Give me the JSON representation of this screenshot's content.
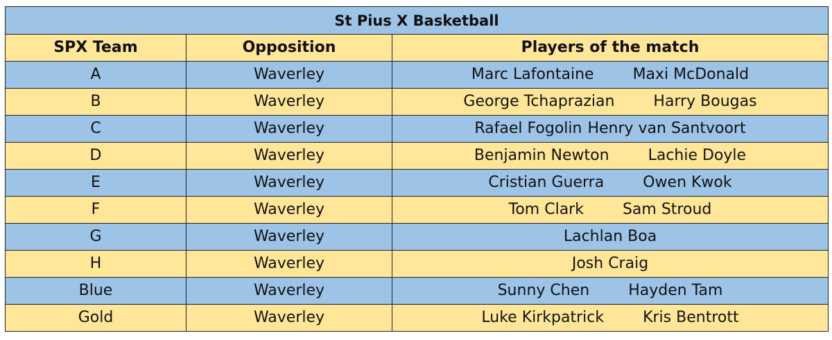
{
  "title": "St Pius X Basketball",
  "headers": [
    "SPX Team",
    "Opposition",
    "Players of the match"
  ],
  "colors": {
    "row_blue": "#9dc3e6",
    "row_yellow": "#ffe699"
  },
  "rows": [
    {
      "team": "A",
      "opposition": "Waverley",
      "players": [
        "Marc Lafontaine",
        "Maxi McDonald"
      ]
    },
    {
      "team": "B",
      "opposition": "Waverley",
      "players": [
        "George Tchaprazian",
        "Harry Bougas"
      ]
    },
    {
      "team": "C",
      "opposition": "Waverley",
      "players": [
        "Rafael Fogolin",
        "Henry van Santvoort"
      ]
    },
    {
      "team": "D",
      "opposition": "Waverley",
      "players": [
        "Benjamin Newton",
        "Lachie Doyle"
      ]
    },
    {
      "team": "E",
      "opposition": "Waverley",
      "players": [
        "Cristian Guerra",
        "Owen Kwok"
      ]
    },
    {
      "team": "F",
      "opposition": "Waverley",
      "players": [
        "Tom Clark",
        "Sam Stroud"
      ]
    },
    {
      "team": "G",
      "opposition": "Waverley",
      "players": [
        "Lachlan Boa"
      ]
    },
    {
      "team": "H",
      "opposition": "Waverley",
      "players": [
        "Josh Craig"
      ]
    },
    {
      "team": "Blue",
      "opposition": "Waverley",
      "players": [
        "Sunny Chen",
        "Hayden Tam"
      ]
    },
    {
      "team": "Gold",
      "opposition": "Waverley",
      "players": [
        "Luke Kirkpatrick",
        "Kris Bentrott"
      ]
    }
  ]
}
